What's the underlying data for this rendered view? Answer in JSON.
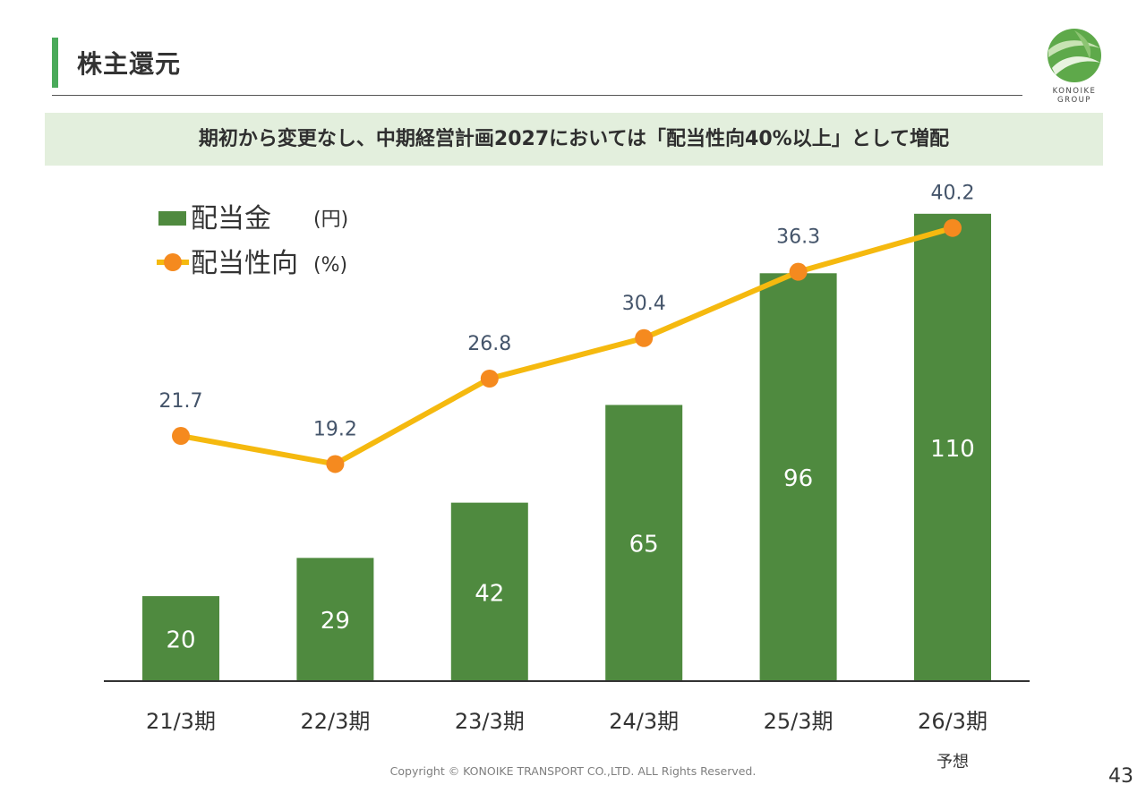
{
  "header": {
    "title": "株主還元",
    "banner": "期初から変更なし、中期経営計画2027においては「配当性向40%以上」として増配"
  },
  "logo": {
    "lines": [
      "KONOIKE",
      "GROUP"
    ]
  },
  "footer": {
    "copyright": "Copyright © KONOIKE TRANSPORT CO.,LTD.   ALL Rights Reserved.",
    "page_number": "43"
  },
  "colors": {
    "bar": "#4f8a3f",
    "line": "#f5b90f",
    "marker": "#f58a1f",
    "accent": "#4aaa5a",
    "banner_bg": "#e3efdd"
  },
  "chart_data": {
    "type": "bar",
    "categories": [
      "21/3期",
      "22/3期",
      "23/3期",
      "24/3期",
      "25/3期",
      "26/3期"
    ],
    "category_notes": [
      "",
      "",
      "",
      "",
      "",
      "予想"
    ],
    "series": [
      {
        "name": "配当金",
        "unit": "(円)",
        "type": "bar",
        "values": [
          20,
          29,
          42,
          65,
          96,
          110
        ]
      },
      {
        "name": "配当性向",
        "unit": "(%)",
        "type": "line",
        "values": [
          21.7,
          19.2,
          26.8,
          30.4,
          36.3,
          40.2
        ]
      }
    ],
    "legend_position": "top-left",
    "grid": false,
    "y_axis_visible": false
  }
}
